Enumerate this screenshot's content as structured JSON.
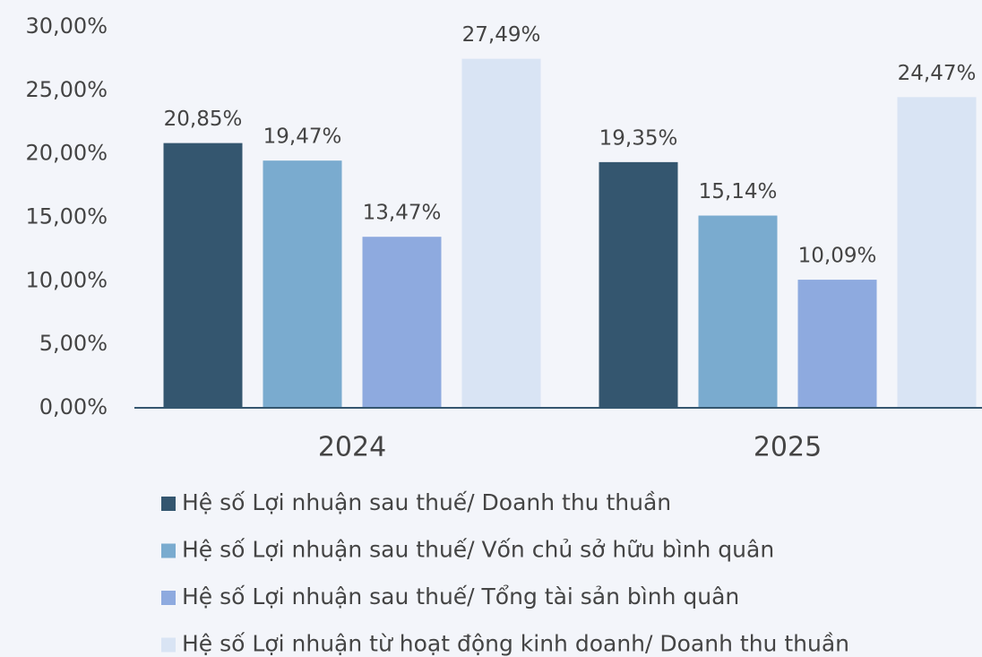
{
  "chart_data": {
    "type": "bar",
    "categories": [
      "2024",
      "2025"
    ],
    "series": [
      {
        "name": "Hệ số Lợi nhuận sau thuế/ Doanh thu thuần",
        "color": "#34566f",
        "values": [
          20.85,
          19.35
        ],
        "value_labels": [
          "20,85%",
          "19,35%"
        ]
      },
      {
        "name": "Hệ số Lợi nhuận sau thuế/ Vốn chủ sở hữu bình quân",
        "color": "#7aabcf",
        "values": [
          19.47,
          15.14
        ],
        "value_labels": [
          "19,47%",
          "15,14%"
        ]
      },
      {
        "name": "Hệ số Lợi nhuận sau thuế/ Tổng tài sản bình quân",
        "color": "#8eaadf",
        "values": [
          13.47,
          10.09
        ],
        "value_labels": [
          "13,47%",
          "10,09%"
        ]
      },
      {
        "name": "Hệ số Lợi nhuận từ hoạt động kinh doanh/ Doanh thu thuần",
        "color": "#d9e4f4",
        "values": [
          27.49,
          24.47
        ],
        "value_labels": [
          "27,49%",
          "24,47%"
        ]
      }
    ],
    "ylim": [
      0,
      30
    ],
    "yticks": [
      {
        "value": 0,
        "label": "0,00%"
      },
      {
        "value": 5,
        "label": "5,00%"
      },
      {
        "value": 10,
        "label": "10,00%"
      },
      {
        "value": 15,
        "label": "15,00%"
      },
      {
        "value": 20,
        "label": "20,00%"
      },
      {
        "value": 25,
        "label": "25,00%"
      },
      {
        "value": 30,
        "label": "30,00%"
      }
    ],
    "legend": "bottom"
  }
}
